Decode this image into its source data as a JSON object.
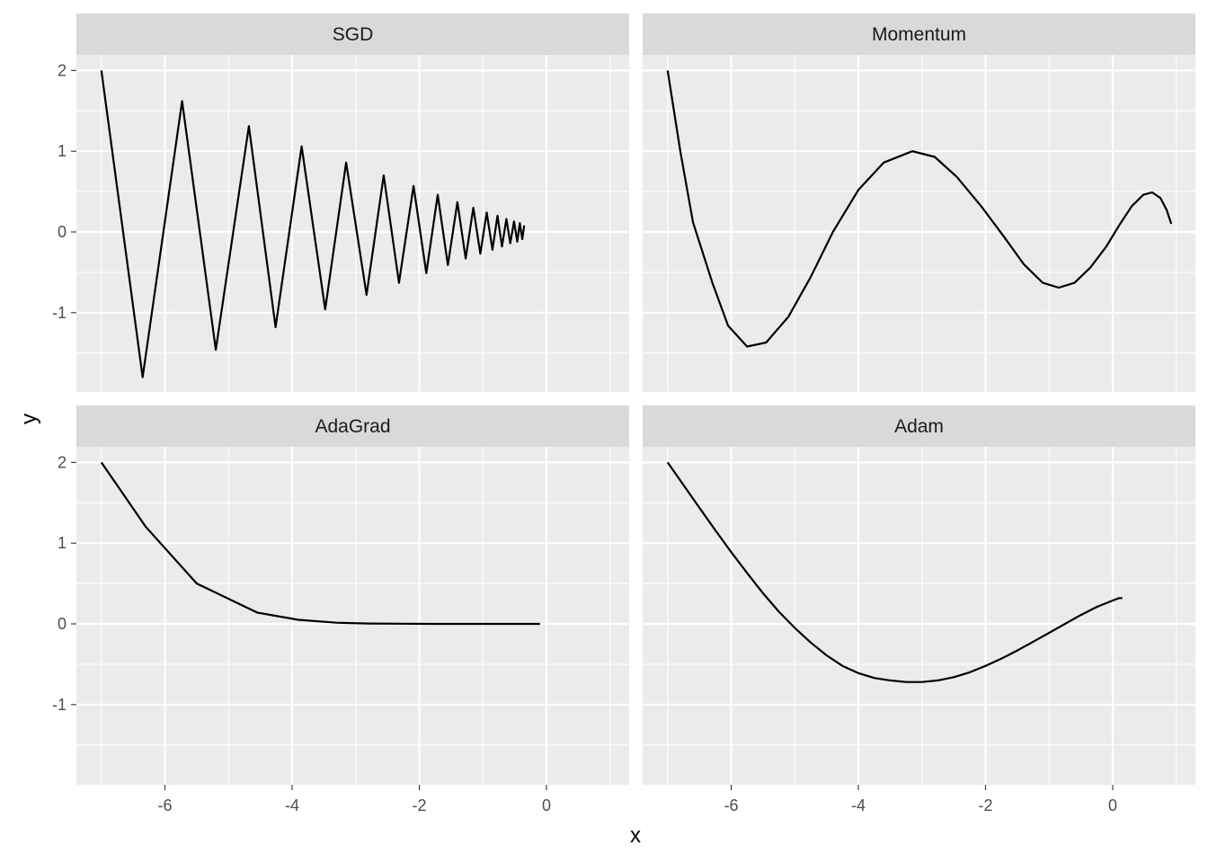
{
  "chart_data": {
    "type": "line",
    "layout": "facet-grid-2x2",
    "xlabel": "x",
    "ylabel": "y",
    "xlim": [
      -7.4,
      1.3
    ],
    "ylim": [
      -2.0,
      2.2
    ],
    "x_ticks": [
      -6,
      -4,
      -2,
      0
    ],
    "x_tick_labels": [
      "-6",
      "-4",
      "-2",
      "0"
    ],
    "y_ticks": [
      -1,
      0,
      1,
      2
    ],
    "y_tick_labels": [
      "-1",
      "0",
      "1",
      "2"
    ],
    "grid": true,
    "colors": {
      "panel_background": "#ebebeb",
      "strip_background": "#d9d9d9",
      "grid_line": "#ffffff",
      "series_line": "#000000",
      "tick_text": "#4d4d4d"
    },
    "panels": [
      {
        "title": "SGD",
        "points": [
          [
            -7.0,
            2.0
          ],
          [
            -6.35,
            -1.8
          ],
          [
            -5.73,
            1.62
          ],
          [
            -5.2,
            -1.46
          ],
          [
            -4.68,
            1.31
          ],
          [
            -4.26,
            -1.18
          ],
          [
            -3.85,
            1.06
          ],
          [
            -3.48,
            -0.96
          ],
          [
            -3.15,
            0.86
          ],
          [
            -2.83,
            -0.78
          ],
          [
            -2.56,
            0.7
          ],
          [
            -2.32,
            -0.63
          ],
          [
            -2.09,
            0.57
          ],
          [
            -1.89,
            -0.51
          ],
          [
            -1.71,
            0.46
          ],
          [
            -1.55,
            -0.41
          ],
          [
            -1.4,
            0.37
          ],
          [
            -1.27,
            -0.33
          ],
          [
            -1.15,
            0.3
          ],
          [
            -1.04,
            -0.27
          ],
          [
            -0.94,
            0.24
          ],
          [
            -0.85,
            -0.22
          ],
          [
            -0.77,
            0.2
          ],
          [
            -0.7,
            -0.18
          ],
          [
            -0.63,
            0.16
          ],
          [
            -0.57,
            -0.14
          ],
          [
            -0.51,
            0.13
          ],
          [
            -0.46,
            -0.12
          ],
          [
            -0.42,
            0.11
          ],
          [
            -0.38,
            -0.09
          ],
          [
            -0.35,
            0.08
          ]
        ]
      },
      {
        "title": "Momentum",
        "points": [
          [
            -7.0,
            2.0
          ],
          [
            -6.8,
            1.0
          ],
          [
            -6.6,
            0.12
          ],
          [
            -6.3,
            -0.62
          ],
          [
            -6.05,
            -1.16
          ],
          [
            -5.75,
            -1.42
          ],
          [
            -5.45,
            -1.37
          ],
          [
            -5.1,
            -1.05
          ],
          [
            -4.75,
            -0.56
          ],
          [
            -4.4,
            0.0
          ],
          [
            -4.0,
            0.52
          ],
          [
            -3.6,
            0.86
          ],
          [
            -3.15,
            1.0
          ],
          [
            -2.8,
            0.93
          ],
          [
            -2.45,
            0.68
          ],
          [
            -2.05,
            0.3
          ],
          [
            -1.7,
            -0.07
          ],
          [
            -1.4,
            -0.4
          ],
          [
            -1.1,
            -0.63
          ],
          [
            -0.85,
            -0.69
          ],
          [
            -0.6,
            -0.63
          ],
          [
            -0.35,
            -0.44
          ],
          [
            -0.1,
            -0.18
          ],
          [
            0.1,
            0.08
          ],
          [
            0.3,
            0.32
          ],
          [
            0.48,
            0.46
          ],
          [
            0.62,
            0.49
          ],
          [
            0.75,
            0.42
          ],
          [
            0.85,
            0.27
          ],
          [
            0.92,
            0.1
          ]
        ]
      },
      {
        "title": "AdaGrad",
        "points": [
          [
            -7.0,
            2.0
          ],
          [
            -6.3,
            1.2
          ],
          [
            -5.5,
            0.5
          ],
          [
            -4.55,
            0.14
          ],
          [
            -3.9,
            0.05
          ],
          [
            -3.3,
            0.015
          ],
          [
            -2.8,
            0.005
          ],
          [
            -2.3,
            0.002
          ],
          [
            -1.8,
            0.0
          ],
          [
            -1.2,
            0.0
          ],
          [
            -0.6,
            0.0
          ],
          [
            -0.1,
            0.0
          ]
        ]
      },
      {
        "title": "Adam",
        "points": [
          [
            -7.0,
            2.0
          ],
          [
            -6.75,
            1.72
          ],
          [
            -6.5,
            1.44
          ],
          [
            -6.25,
            1.16
          ],
          [
            -6.0,
            0.89
          ],
          [
            -5.75,
            0.63
          ],
          [
            -5.5,
            0.38
          ],
          [
            -5.25,
            0.15
          ],
          [
            -5.0,
            -0.05
          ],
          [
            -4.75,
            -0.23
          ],
          [
            -4.5,
            -0.39
          ],
          [
            -4.25,
            -0.52
          ],
          [
            -4.0,
            -0.61
          ],
          [
            -3.75,
            -0.67
          ],
          [
            -3.5,
            -0.7
          ],
          [
            -3.25,
            -0.72
          ],
          [
            -3.0,
            -0.72
          ],
          [
            -2.75,
            -0.7
          ],
          [
            -2.5,
            -0.66
          ],
          [
            -2.25,
            -0.6
          ],
          [
            -2.0,
            -0.52
          ],
          [
            -1.75,
            -0.43
          ],
          [
            -1.5,
            -0.33
          ],
          [
            -1.25,
            -0.22
          ],
          [
            -1.0,
            -0.11
          ],
          [
            -0.75,
            0.0
          ],
          [
            -0.5,
            0.11
          ],
          [
            -0.25,
            0.21
          ],
          [
            0.0,
            0.29
          ],
          [
            0.1,
            0.32
          ],
          [
            0.15,
            0.32
          ]
        ]
      }
    ]
  }
}
